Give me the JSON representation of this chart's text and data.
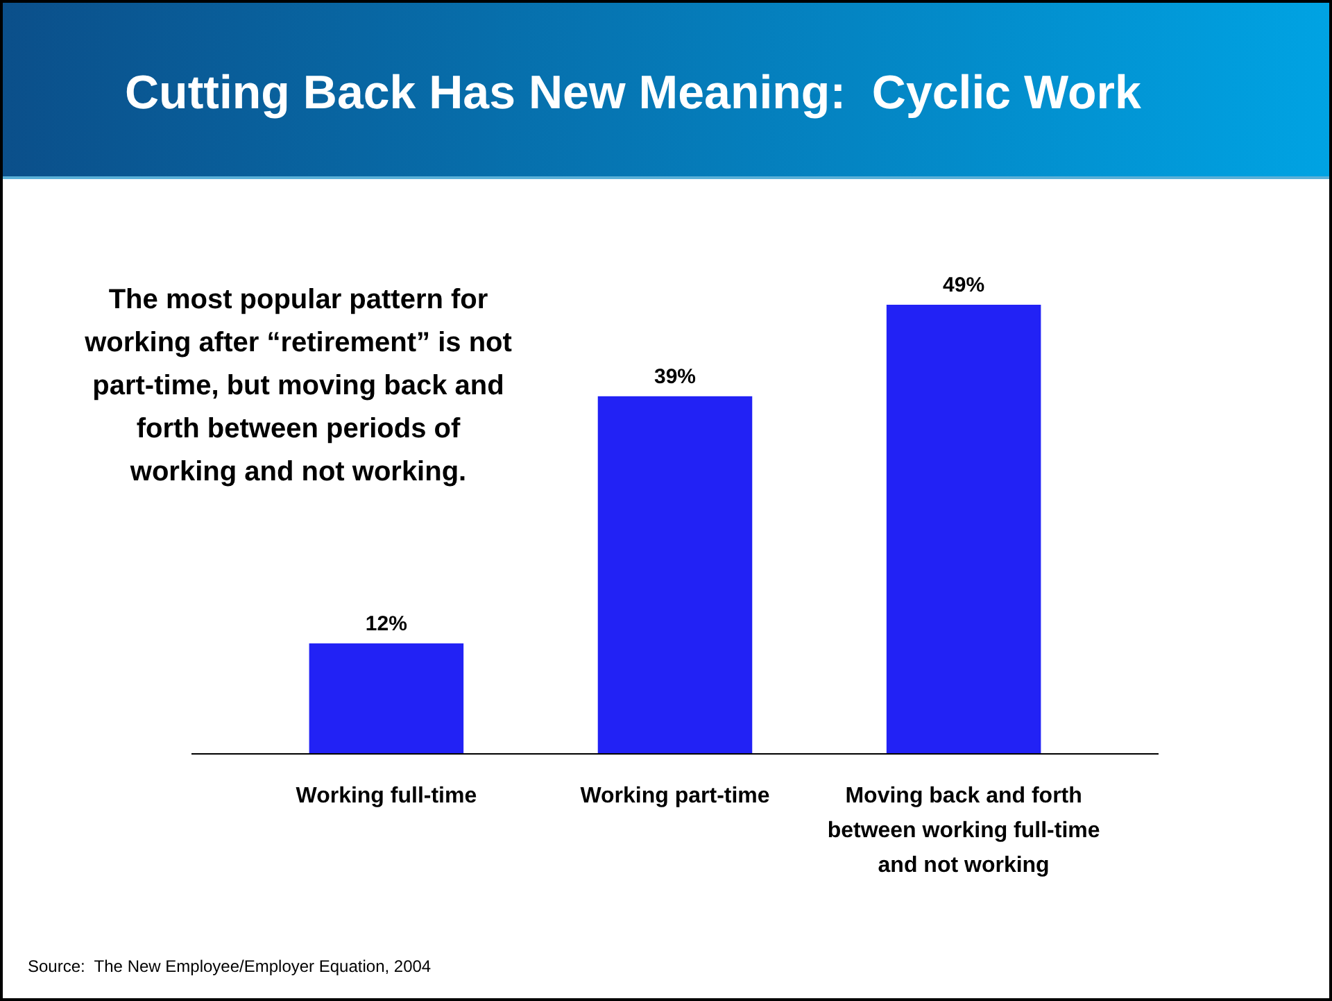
{
  "chart_data": {
    "type": "bar",
    "title": "Cutting Back Has New Meaning:  Cyclic Work",
    "categories": [
      "Working full-time",
      "Working part-time",
      "Moving back and forth between working full-time and not working"
    ],
    "values": [
      12,
      39,
      49
    ],
    "value_labels": [
      "12%",
      "39%",
      "49%"
    ],
    "color": "#2222f5",
    "annotations": [
      "The most popular pattern for working after “retirement” is not part-time, but moving back and forth between periods of working and not working.",
      "Source:  The New Employee/Employer Equation, 2004"
    ]
  }
}
